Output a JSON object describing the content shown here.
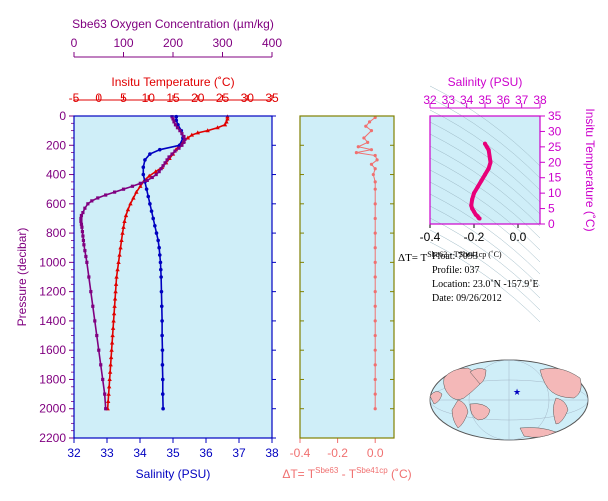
{
  "colors": {
    "oxygen": "#800080",
    "temperature": "#e00000",
    "salinity": "#0000c0",
    "delta_t": "#f07070",
    "ts_axis": "#cc00cc",
    "panel_bg": "#cfeef8",
    "ts_line": "#e8007a"
  },
  "chart_data": [
    {
      "type": "line",
      "panel": "main-profile",
      "ylabel": "Pressure (decibar)",
      "ylim": [
        2200,
        0
      ],
      "yticks": [
        "0",
        "200",
        "400",
        "600",
        "800",
        "1000",
        "1200",
        "1400",
        "1600",
        "1800",
        "2000",
        "2200"
      ],
      "axes": {
        "oxygen": {
          "label": "Sbe63 Oxygen Concentration (µm/kg)",
          "range": [
            0,
            400
          ],
          "ticks": [
            "0",
            "100",
            "200",
            "300",
            "400"
          ]
        },
        "temperature": {
          "label": "Insitu Temperature (˚C)",
          "range": [
            -5,
            35
          ],
          "ticks": [
            "-5",
            "0",
            "5",
            "10",
            "15",
            "20",
            "25",
            "30",
            "35"
          ]
        },
        "salinity": {
          "label": "Salinity (PSU)",
          "range": [
            32,
            38
          ],
          "ticks": [
            "32",
            "33",
            "34",
            "35",
            "36",
            "37",
            "38"
          ]
        }
      },
      "series": [
        {
          "id": "temperature",
          "points": [
            [
              26.0,
              5
            ],
            [
              26.0,
              20
            ],
            [
              25.8,
              40
            ],
            [
              25.5,
              60
            ],
            [
              24.0,
              80
            ],
            [
              22.0,
              100
            ],
            [
              20.0,
              115
            ],
            [
              18.8,
              130
            ],
            [
              18.0,
              150
            ],
            [
              17.2,
              170
            ],
            [
              16.3,
              200
            ],
            [
              15.6,
              230
            ],
            [
              15.0,
              260
            ],
            [
              14.3,
              290
            ],
            [
              13.6,
              320
            ],
            [
              12.8,
              350
            ],
            [
              11.5,
              380
            ],
            [
              10.2,
              410
            ],
            [
              9.2,
              440
            ],
            [
              8.4,
              480
            ],
            [
              7.6,
              520
            ],
            [
              7.0,
              560
            ],
            [
              6.4,
              600
            ],
            [
              5.9,
              640
            ],
            [
              5.5,
              680
            ],
            [
              5.2,
              720
            ],
            [
              5.0,
              760
            ],
            [
              4.8,
              800
            ],
            [
              4.6,
              850
            ],
            [
              4.4,
              900
            ],
            [
              4.2,
              950
            ],
            [
              4.0,
              1000
            ],
            [
              3.8,
              1050
            ],
            [
              3.6,
              1100
            ],
            [
              3.5,
              1150
            ],
            [
              3.4,
              1200
            ],
            [
              3.3,
              1250
            ],
            [
              3.2,
              1300
            ],
            [
              3.1,
              1350
            ],
            [
              3.0,
              1400
            ],
            [
              2.9,
              1450
            ],
            [
              2.8,
              1500
            ],
            [
              2.7,
              1550
            ],
            [
              2.6,
              1600
            ],
            [
              2.5,
              1650
            ],
            [
              2.4,
              1700
            ],
            [
              2.3,
              1750
            ],
            [
              2.2,
              1800
            ],
            [
              2.1,
              1850
            ],
            [
              2.0,
              1900
            ],
            [
              1.9,
              1950
            ],
            [
              1.8,
              2000
            ]
          ]
        },
        {
          "id": "salinity",
          "points": [
            [
              35.1,
              5
            ],
            [
              35.1,
              30
            ],
            [
              35.15,
              60
            ],
            [
              35.25,
              100
            ],
            [
              35.3,
              150
            ],
            [
              35.2,
              200
            ],
            [
              34.6,
              230
            ],
            [
              34.3,
              260
            ],
            [
              34.15,
              300
            ],
            [
              34.1,
              350
            ],
            [
              34.1,
              400
            ],
            [
              34.15,
              450
            ],
            [
              34.2,
              500
            ],
            [
              34.25,
              550
            ],
            [
              34.3,
              600
            ],
            [
              34.35,
              650
            ],
            [
              34.4,
              700
            ],
            [
              34.45,
              750
            ],
            [
              34.5,
              800
            ],
            [
              34.55,
              850
            ],
            [
              34.58,
              900
            ],
            [
              34.6,
              950
            ],
            [
              34.62,
              1000
            ],
            [
              34.63,
              1050
            ],
            [
              34.64,
              1100
            ],
            [
              34.65,
              1200
            ],
            [
              34.66,
              1300
            ],
            [
              34.67,
              1400
            ],
            [
              34.67,
              1500
            ],
            [
              34.68,
              1600
            ],
            [
              34.68,
              1700
            ],
            [
              34.69,
              1800
            ],
            [
              34.69,
              1900
            ],
            [
              34.7,
              2000
            ]
          ]
        },
        {
          "id": "oxygen",
          "points": [
            [
              198,
              5
            ],
            [
              200,
              20
            ],
            [
              202,
              40
            ],
            [
              205,
              60
            ],
            [
              209,
              80
            ],
            [
              214,
              100
            ],
            [
              218,
              120
            ],
            [
              222,
              140
            ],
            [
              224,
              160
            ],
            [
              222,
              180
            ],
            [
              218,
              200
            ],
            [
              212,
              220
            ],
            [
              204,
              240
            ],
            [
              198,
              260
            ],
            [
              192,
              280
            ],
            [
              188,
              300
            ],
            [
              184,
              320
            ],
            [
              180,
              340
            ],
            [
              176,
              360
            ],
            [
              172,
              380
            ],
            [
              166,
              400
            ],
            [
              158,
              420
            ],
            [
              148,
              440
            ],
            [
              134,
              460
            ],
            [
              118,
              480
            ],
            [
              100,
              500
            ],
            [
              82,
              520
            ],
            [
              64,
              540
            ],
            [
              48,
              560
            ],
            [
              36,
              580
            ],
            [
              28,
              600
            ],
            [
              22,
              630
            ],
            [
              18,
              660
            ],
            [
              15,
              680
            ],
            [
              14,
              700
            ],
            [
              14,
              720
            ],
            [
              15,
              740
            ],
            [
              16,
              760
            ],
            [
              17,
              790
            ],
            [
              18,
              820
            ],
            [
              19,
              850
            ],
            [
              20,
              880
            ],
            [
              22,
              920
            ],
            [
              24,
              960
            ],
            [
              26,
              1000
            ],
            [
              30,
              1100
            ],
            [
              34,
              1200
            ],
            [
              38,
              1300
            ],
            [
              42,
              1400
            ],
            [
              46,
              1500
            ],
            [
              50,
              1600
            ],
            [
              54,
              1700
            ],
            [
              58,
              1800
            ],
            [
              62,
              1900
            ],
            [
              64,
              2000
            ]
          ]
        }
      ],
      "footnote": ""
    },
    {
      "type": "scatter",
      "panel": "delta-t",
      "xlabel_parts": [
        "ΔT= T",
        "Sbe63",
        " - T",
        "Sbe41cp",
        " (˚C)"
      ],
      "xlim": [
        -0.4,
        0.1
      ],
      "xticks": [
        "-0.4",
        "-0.2",
        "0.0"
      ],
      "points": [
        [
          0.0,
          10
        ],
        [
          -0.03,
          40
        ],
        [
          -0.05,
          70
        ],
        [
          -0.02,
          100
        ],
        [
          -0.06,
          150
        ],
        [
          -0.04,
          180
        ],
        [
          -0.09,
          210
        ],
        [
          -0.02,
          230
        ],
        [
          -0.1,
          250
        ],
        [
          0.0,
          270
        ],
        [
          0.01,
          300
        ],
        [
          -0.02,
          330
        ],
        [
          0.0,
          360
        ],
        [
          -0.01,
          400
        ],
        [
          0.0,
          450
        ],
        [
          0.0,
          500
        ],
        [
          0.0,
          600
        ],
        [
          0.0,
          700
        ],
        [
          0.0,
          800
        ],
        [
          0.0,
          900
        ],
        [
          0.0,
          1000
        ],
        [
          0.0,
          1100
        ],
        [
          0.0,
          1200
        ],
        [
          0.0,
          1300
        ],
        [
          0.0,
          1400
        ],
        [
          0.0,
          1500
        ],
        [
          0.0,
          1600
        ],
        [
          0.0,
          1700
        ],
        [
          0.0,
          1800
        ],
        [
          0.0,
          1900
        ],
        [
          0.0,
          2000
        ]
      ]
    },
    {
      "type": "line",
      "panel": "ts-diagram",
      "xlabel": "Salinity (PSU)",
      "ylabel": "Insitu Temperature (˚C)",
      "xlim": [
        32,
        38
      ],
      "ylim": [
        0,
        35
      ],
      "xticks": [
        "32",
        "33",
        "34",
        "35",
        "36",
        "37",
        "38"
      ],
      "yticks": [
        "0",
        "5",
        "10",
        "15",
        "20",
        "25",
        "30",
        "35"
      ],
      "dtticks": [
        "-0.4",
        "-0.2",
        "0.0"
      ],
      "points": [
        [
          35.0,
          26
        ],
        [
          35.1,
          25
        ],
        [
          35.2,
          24
        ],
        [
          35.25,
          22
        ],
        [
          35.3,
          20
        ],
        [
          35.2,
          18
        ],
        [
          35.0,
          16
        ],
        [
          34.8,
          14
        ],
        [
          34.6,
          12
        ],
        [
          34.4,
          10
        ],
        [
          34.3,
          8
        ],
        [
          34.25,
          6
        ],
        [
          34.3,
          5
        ],
        [
          34.4,
          4
        ],
        [
          34.5,
          3
        ],
        [
          34.6,
          2.5
        ],
        [
          34.65,
          2
        ],
        [
          34.7,
          1.8
        ]
      ]
    }
  ],
  "info": {
    "delta_line_prefix": "ΔT= T",
    "delta_overlap": "Sbe63 - TSbe41cp (˚C)",
    "float_line": "Float:  7093",
    "profile_line": "Profile:  037",
    "location_line": "Location:  23.0˚N  -157.9˚E",
    "date_line": "Date:  09/26/2012"
  }
}
